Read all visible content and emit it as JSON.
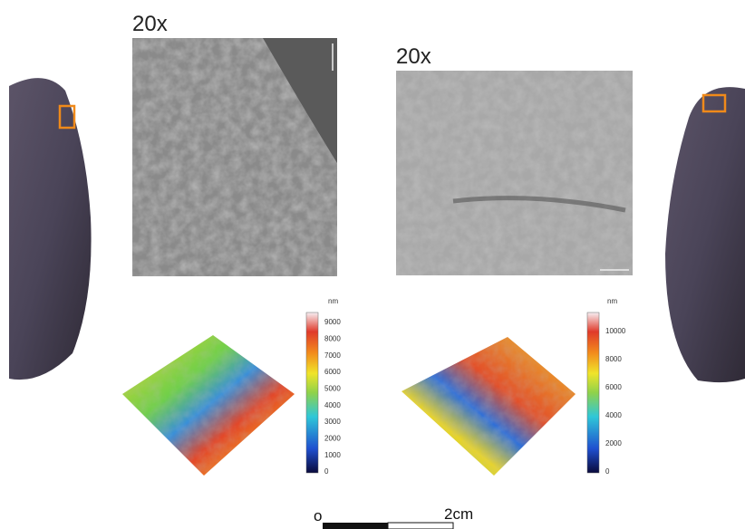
{
  "panels": [
    {
      "magnification": "20x",
      "colorbar": {
        "unit": "nm",
        "ticks": [
          "0",
          "1000",
          "2000",
          "3000",
          "4000",
          "5000",
          "6000",
          "7000",
          "8000",
          "9000"
        ]
      }
    },
    {
      "magnification": "20x",
      "colorbar": {
        "unit": "nm",
        "ticks": [
          "0",
          "2000",
          "4000",
          "6000",
          "8000",
          "10000"
        ]
      }
    }
  ],
  "scale_bar": {
    "start": "o",
    "end": "2cm"
  }
}
